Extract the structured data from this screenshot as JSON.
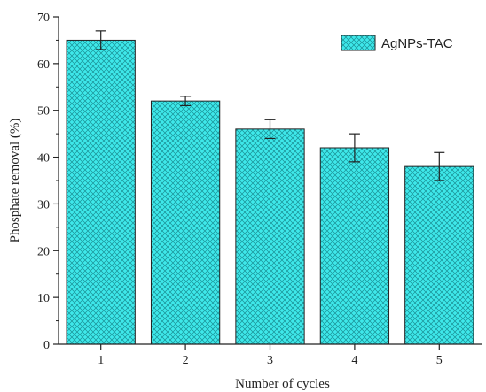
{
  "chart_data": {
    "type": "bar",
    "categories": [
      "1",
      "2",
      "3",
      "4",
      "5"
    ],
    "series": [
      {
        "name": "AgNPs-TAC",
        "values": [
          65,
          52,
          46,
          42,
          38
        ],
        "errors": [
          2,
          1,
          2,
          3,
          3
        ]
      }
    ],
    "xlabel": "Number of cycles",
    "ylabel": "Phosphate removal (%)",
    "ylim": [
      0,
      70
    ],
    "yticks": [
      0,
      10,
      20,
      30,
      40,
      50,
      60,
      70
    ],
    "grid": false,
    "legend": "top-right",
    "bar_color": "#3ee8ea",
    "hatch_color": "#1a8f94",
    "axis_color": "#222222"
  }
}
